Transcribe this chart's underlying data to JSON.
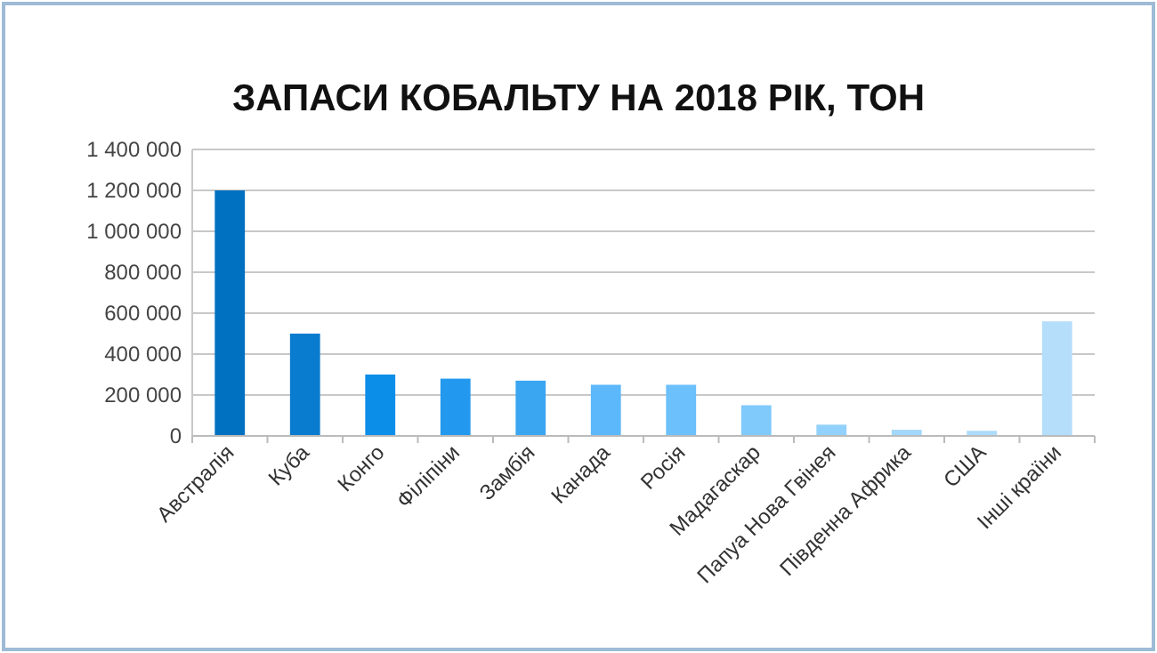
{
  "chart_data": {
    "type": "bar",
    "title": "ЗАПАСИ КОБАЛЬТУ НА 2018 РІК, ТОН",
    "categories": [
      "Австралія",
      "Куба",
      "Конго",
      "Філіпіни",
      "Замбія",
      "Канада",
      "Росія",
      "Мадагаскар",
      "Папуа Нова Гвінея",
      "Південна Африка",
      "США",
      "Інші країни"
    ],
    "values": [
      1200000,
      500000,
      300000,
      280000,
      270000,
      250000,
      250000,
      150000,
      55000,
      30000,
      25000,
      560000
    ],
    "colors": [
      "#0070c0",
      "#0a7ccf",
      "#0b8ee8",
      "#2299ee",
      "#3aa6f2",
      "#5cb8fa",
      "#6cc0fb",
      "#80c9fb",
      "#92d1fb",
      "#a2d8fb",
      "#acdbfb",
      "#b5defb"
    ],
    "ylim": [
      0,
      1400000
    ],
    "yticks": [
      {
        "value": 0,
        "label": "0"
      },
      {
        "value": 200000,
        "label": "200 000"
      },
      {
        "value": 400000,
        "label": "400 000"
      },
      {
        "value": 600000,
        "label": "600 000"
      },
      {
        "value": 800000,
        "label": "800 000"
      },
      {
        "value": 1000000,
        "label": "1 000 000"
      },
      {
        "value": 1200000,
        "label": "1 200 000"
      },
      {
        "value": 1400000,
        "label": "1 400 000"
      }
    ],
    "grid": "y"
  }
}
